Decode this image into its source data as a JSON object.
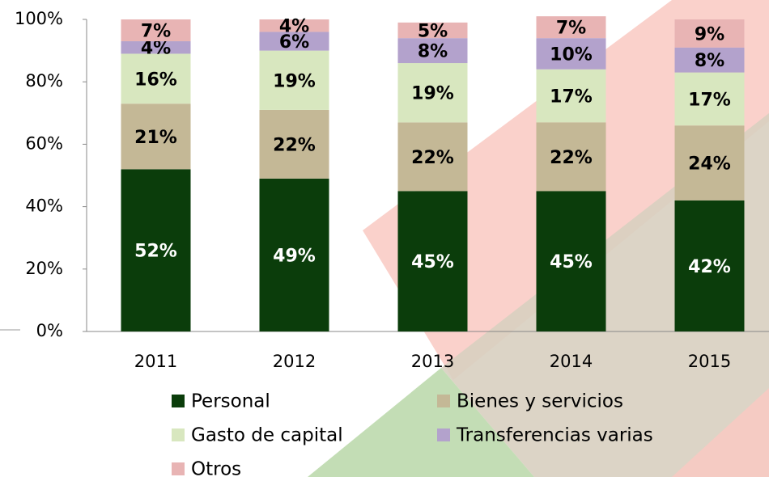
{
  "chart_data": {
    "type": "stacked_bar",
    "categories": [
      "2011",
      "2012",
      "2013",
      "2014",
      "2015"
    ],
    "series": [
      {
        "name": "Personal",
        "color": "#0b3d0b",
        "values": [
          52,
          49,
          45,
          45,
          42
        ],
        "value_labels": [
          "52%",
          "49%",
          "45%",
          "45%",
          "42%"
        ]
      },
      {
        "name": "Bienes y servicios",
        "color": "#c4b896",
        "values": [
          21,
          22,
          22,
          22,
          24
        ],
        "value_labels": [
          "21%",
          "22%",
          "22%",
          "22%",
          "24%"
        ]
      },
      {
        "name": "Gasto de capital",
        "color": "#d8e7bf",
        "values": [
          16,
          19,
          19,
          17,
          17
        ],
        "value_labels": [
          "16%",
          "19%",
          "19%",
          "17%",
          "17%"
        ]
      },
      {
        "name": "Transferencias varias",
        "color": "#b3a2cc",
        "values": [
          4,
          6,
          8,
          10,
          8
        ],
        "value_labels": [
          "4%",
          "6%",
          "8%",
          "10%",
          "8%"
        ]
      },
      {
        "name": "Otros",
        "color": "#e8b4b4",
        "values": [
          7,
          4,
          5,
          7,
          9
        ],
        "value_labels": [
          "7%",
          "4%",
          "5%",
          "7%",
          "9%"
        ]
      }
    ],
    "ylim": [
      0,
      100
    ],
    "yticks": [
      {
        "value": 0,
        "label": "0%"
      },
      {
        "value": 20,
        "label": "20%"
      },
      {
        "value": 40,
        "label": "40%"
      },
      {
        "value": 60,
        "label": "60%"
      },
      {
        "value": 80,
        "label": "80%"
      },
      {
        "value": 100,
        "label": "100%"
      }
    ]
  }
}
